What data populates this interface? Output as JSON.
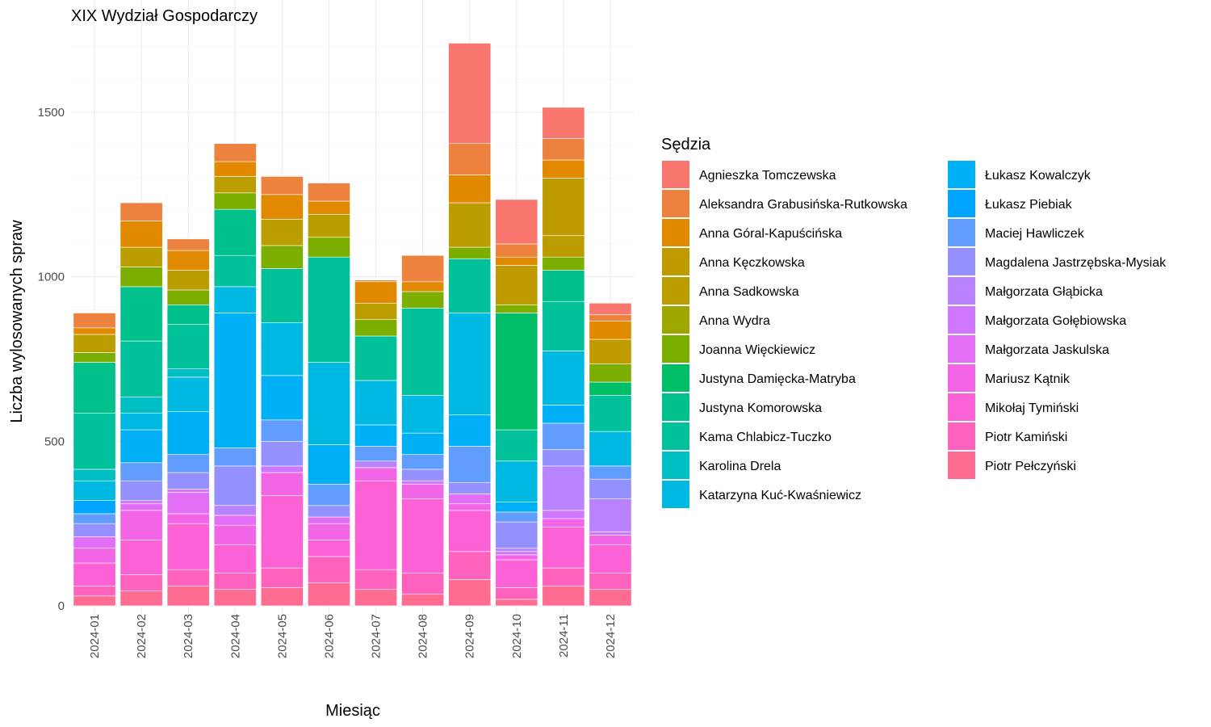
{
  "chart_data": {
    "type": "bar",
    "stacked": true,
    "title": "XIX Wydział Gospodarczy",
    "xlabel": "Miesiąc",
    "ylabel": "Liczba wylosowanych spraw",
    "ylim": [
      0,
      1760
    ],
    "yticks": [
      0,
      500,
      1000,
      1500
    ],
    "grid": true,
    "legend_title": "Sędzia",
    "legend_position": "right",
    "categories": [
      "2024-01",
      "2024-02",
      "2024-03",
      "2024-04",
      "2024-05",
      "2024-06",
      "2024-07",
      "2024-08",
      "2024-09",
      "2024-10",
      "2024-11",
      "2024-12"
    ],
    "series": [
      {
        "name": "Piotr Pełczyński",
        "color": "#FF6C91",
        "values": [
          30,
          45,
          60,
          50,
          55,
          70,
          50,
          35,
          80,
          20,
          60,
          50
        ]
      },
      {
        "name": "Piotr Kamiński",
        "color": "#FF62BC",
        "values": [
          30,
          50,
          50,
          50,
          60,
          80,
          60,
          65,
          85,
          35,
          55,
          50
        ]
      },
      {
        "name": "Mikołaj Tymiński",
        "color": "#FC61D5",
        "values": [
          70,
          105,
          140,
          85,
          220,
          50,
          270,
          225,
          125,
          85,
          125,
          85
        ]
      },
      {
        "name": "Mariusz Kątnik",
        "color": "#F265E7",
        "values": [
          45,
          90,
          30,
          60,
          70,
          50,
          40,
          45,
          20,
          15,
          25,
          30
        ]
      },
      {
        "name": "Małgorzata Jaskulska",
        "color": "#E36EF6",
        "values": [
          35,
          20,
          65,
          30,
          0,
          20,
          0,
          0,
          30,
          0,
          0,
          0
        ]
      },
      {
        "name": "Małgorzata Gołębiowska",
        "color": "#CF78FF",
        "values": [
          0,
          10,
          10,
          0,
          20,
          0,
          0,
          10,
          0,
          10,
          25,
          10
        ]
      },
      {
        "name": "Małgorzata Głąbicka",
        "color": "#B983FF",
        "values": [
          0,
          0,
          0,
          30,
          0,
          0,
          20,
          0,
          0,
          10,
          135,
          100
        ]
      },
      {
        "name": "Magdalena Jastrzębska-Mysiak",
        "color": "#9590FF",
        "values": [
          40,
          60,
          50,
          120,
          75,
          35,
          0,
          35,
          35,
          80,
          50,
          60
        ]
      },
      {
        "name": "Maciej Hawliczek",
        "color": "#619CFF",
        "values": [
          30,
          55,
          55,
          55,
          65,
          65,
          45,
          45,
          110,
          30,
          80,
          40
        ]
      },
      {
        "name": "Łukasz Piebiak",
        "color": "#00A5FF",
        "values": [
          40,
          0,
          0,
          0,
          0,
          0,
          0,
          0,
          0,
          0,
          0,
          0
        ]
      },
      {
        "name": "Łukasz Kowalczyk",
        "color": "#00B0F6",
        "values": [
          0,
          100,
          130,
          410,
          135,
          120,
          65,
          65,
          95,
          30,
          55,
          0
        ]
      },
      {
        "name": "Katarzyna Kuć-Kwaśniewicz",
        "color": "#00B9E3",
        "values": [
          60,
          50,
          105,
          80,
          160,
          250,
          135,
          115,
          310,
          125,
          165,
          105
        ]
      },
      {
        "name": "Karolina Drela",
        "color": "#00BFC4",
        "values": [
          35,
          50,
          25,
          0,
          0,
          0,
          0,
          0,
          0,
          0,
          0,
          0
        ]
      },
      {
        "name": "Kama Chlabicz-Tuczko",
        "color": "#00C19A",
        "values": [
          170,
          170,
          135,
          95,
          165,
          320,
          135,
          265,
          165,
          95,
          150,
          110
        ]
      },
      {
        "name": "Justyna Komorowska",
        "color": "#00C08B",
        "values": [
          155,
          165,
          60,
          140,
          0,
          0,
          0,
          0,
          0,
          0,
          95,
          0
        ]
      },
      {
        "name": "Justyna Damięcka-Matryba",
        "color": "#00BE67",
        "values": [
          0,
          0,
          0,
          0,
          0,
          0,
          0,
          0,
          0,
          355,
          0,
          40
        ]
      },
      {
        "name": "Joanna Więckiewicz",
        "color": "#7CAE00",
        "values": [
          30,
          60,
          45,
          50,
          70,
          60,
          50,
          50,
          35,
          25,
          40,
          55
        ]
      },
      {
        "name": "Anna Wydra",
        "color": "#9EA700",
        "values": [
          0,
          0,
          0,
          0,
          0,
          0,
          0,
          0,
          0,
          0,
          0,
          0
        ]
      },
      {
        "name": "Anna Sadkowska",
        "color": "#BB9D00",
        "values": [
          55,
          60,
          60,
          50,
          80,
          70,
          50,
          0,
          135,
          0,
          65,
          0
        ]
      },
      {
        "name": "Anna Kęczkowska",
        "color": "#C09B00",
        "values": [
          0,
          0,
          0,
          0,
          0,
          0,
          0,
          0,
          0,
          120,
          175,
          75
        ]
      },
      {
        "name": "Anna Góral-Kapuścińska",
        "color": "#E18A00",
        "values": [
          20,
          80,
          60,
          45,
          75,
          40,
          65,
          30,
          85,
          25,
          55,
          55
        ]
      },
      {
        "name": "Aleksandra Grabusińska-Rutkowska",
        "color": "#ED813E",
        "values": [
          45,
          55,
          35,
          55,
          55,
          55,
          5,
          80,
          95,
          40,
          65,
          20
        ]
      },
      {
        "name": "Agnieszka Tomczewska",
        "color": "#F8766D",
        "values": [
          0,
          0,
          0,
          0,
          0,
          0,
          0,
          0,
          305,
          135,
          95,
          35
        ]
      }
    ],
    "legend_order": [
      "Agnieszka Tomczewska",
      "Aleksandra Grabusińska-Rutkowska",
      "Anna Góral-Kapuścińska",
      "Anna Kęczkowska",
      "Anna Sadkowska",
      "Anna Wydra",
      "Joanna Więckiewicz",
      "Justyna Damięcka-Matryba",
      "Justyna Komorowska",
      "Kama Chlabicz-Tuczko",
      "Karolina Drela",
      "Katarzyna Kuć-Kwaśniewicz",
      "Łukasz Kowalczyk",
      "Łukasz Piebiak",
      "Maciej Hawliczek",
      "Magdalena Jastrzębska-Mysiak",
      "Małgorzata Głąbicka",
      "Małgorzata Gołębiowska",
      "Małgorzata Jaskulska",
      "Mariusz Kątnik",
      "Mikołaj Tymiński",
      "Piotr Kamiński",
      "Piotr Pełczyński"
    ]
  }
}
